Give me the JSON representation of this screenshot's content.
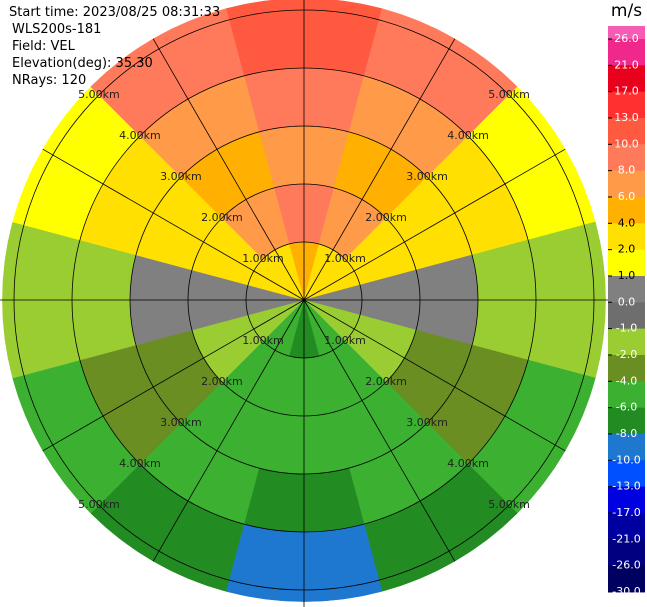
{
  "chart_data": {
    "type": "ppi",
    "info": [
      "Start time: 2023/08/25 08:31:33",
      "WLS200s-181",
      "Field: VEL",
      "Elevation(deg): 35.30",
      "NRays: 120"
    ],
    "rings": [
      {
        "value": 1,
        "label": "1.00km"
      },
      {
        "value": 2,
        "label": "2.00km"
      },
      {
        "value": 3,
        "label": "3.00km"
      },
      {
        "value": 4,
        "label": "4.00km"
      },
      {
        "value": 5,
        "label": "5.00km"
      }
    ],
    "range_km": [
      0,
      1,
      2,
      3,
      4,
      5.2
    ],
    "azimuth_deg": [
      0,
      30,
      60,
      90,
      120,
      150,
      180,
      210,
      240,
      270,
      300,
      330
    ],
    "values": [
      [
        4,
        3,
        2,
        0.5,
        -2,
        -6,
        -8,
        -6,
        -2,
        0.5,
        2,
        3
      ],
      [
        9,
        7,
        2,
        0.5,
        -2,
        -5,
        -5,
        -5,
        -2,
        0.5,
        2,
        7
      ],
      [
        7,
        5,
        3,
        0.5,
        -3,
        -5,
        -5,
        -5,
        -3,
        0.5,
        3,
        5
      ],
      [
        8,
        7,
        3,
        -1.5,
        -3,
        -5,
        -7,
        -5,
        -3,
        -1.5,
        3,
        7
      ],
      [
        12,
        9,
        1.5,
        -1.5,
        -5,
        -7,
        -9,
        -7,
        -5,
        -1.5,
        1.5,
        9
      ]
    ],
    "colorbar": {
      "title": "m/s",
      "top_color": "#f55cb4",
      "ticks": [
        {
          "value": 26,
          "label": "26.0"
        },
        {
          "value": 21,
          "label": "21.0"
        },
        {
          "value": 17,
          "label": "17.0"
        },
        {
          "value": 13,
          "label": "13.0"
        },
        {
          "value": 10,
          "label": "10.0"
        },
        {
          "value": 8,
          "label": "8.0"
        },
        {
          "value": 6,
          "label": "6.0"
        },
        {
          "value": 4,
          "label": "4.0"
        },
        {
          "value": 2,
          "label": "2.0"
        },
        {
          "value": 1,
          "label": "1.0"
        },
        {
          "value": 0,
          "label": "0.0"
        },
        {
          "value": -1,
          "label": "-1.0"
        },
        {
          "value": -2,
          "label": "-2.0"
        },
        {
          "value": -4,
          "label": "-4.0"
        },
        {
          "value": -6,
          "label": "-6.0"
        },
        {
          "value": -8,
          "label": "-8.0"
        },
        {
          "value": -10,
          "label": "-10.0"
        },
        {
          "value": -13,
          "label": "-13.0"
        },
        {
          "value": -17,
          "label": "-17.0"
        },
        {
          "value": -21,
          "label": "-21.0"
        },
        {
          "value": -26,
          "label": "-26.0"
        },
        {
          "value": -30,
          "label": "-30.0"
        }
      ],
      "colors": [
        "#f0288c",
        "#e8001c",
        "#ff3030",
        "#ff5a40",
        "#ff7a5a",
        "#ff9a48",
        "#ffb000",
        "#ffe000",
        "#ffff00",
        "#808080",
        "#6e6e6e",
        "#9acd32",
        "#6b8e23",
        "#3cb030",
        "#228b22",
        "#1e78d0",
        "#0050ff",
        "#0000e0",
        "#0000a0",
        "#000080",
        "#000060"
      ]
    }
  }
}
